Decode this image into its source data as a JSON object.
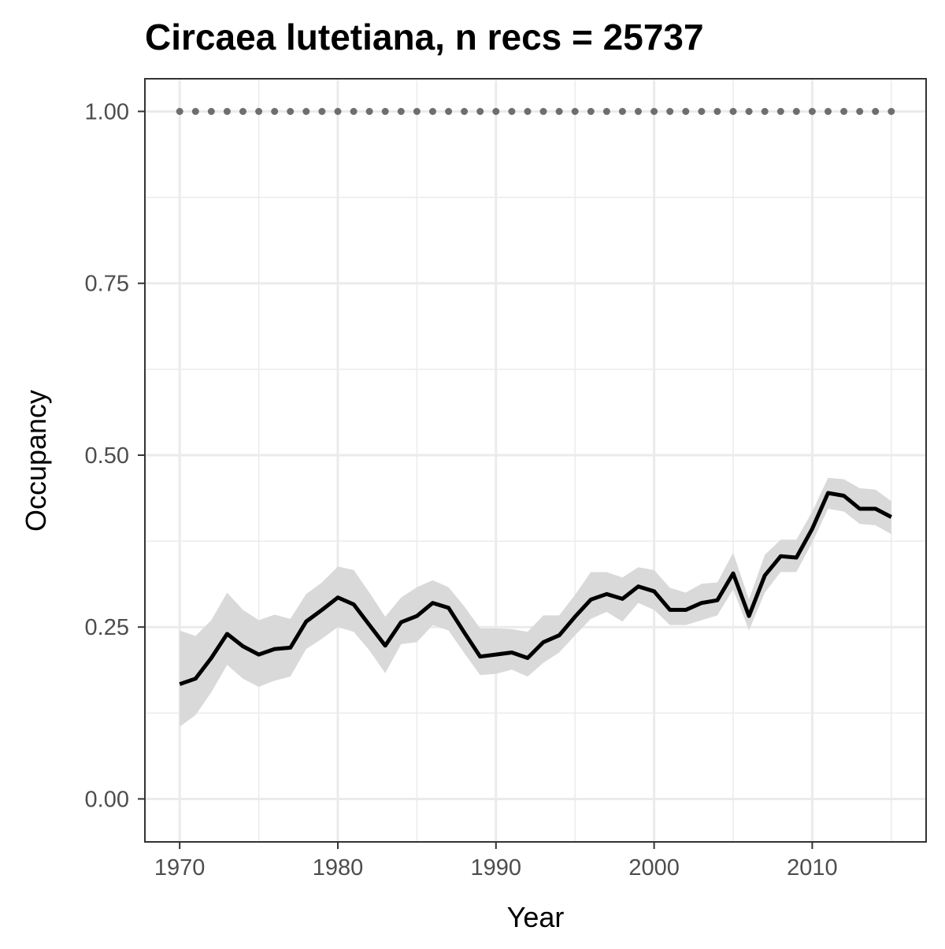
{
  "chart_data": {
    "type": "line",
    "title": "Circaea lutetiana, n recs = 25737",
    "xlabel": "Year",
    "ylabel": "Occupancy",
    "xlim": [
      1967.8,
      2017.2
    ],
    "ylim": [
      -0.0625,
      1.0475
    ],
    "x_ticks": [
      1970,
      1980,
      1990,
      2000,
      2010
    ],
    "x_tick_labels": [
      "1970",
      "1980",
      "1990",
      "2000",
      "2010"
    ],
    "y_ticks": [
      0,
      0.25,
      0.5,
      0.75,
      1.0
    ],
    "y_tick_labels": [
      "0.00",
      "0.25",
      "0.50",
      "0.75",
      "1.00"
    ],
    "grid": true,
    "colors": {
      "line": "#000000",
      "ribbon": "#d9d9d9",
      "reference": "#6e6e6e",
      "grid": "#ebebeb",
      "panel_border": "#333333"
    },
    "series": [
      {
        "type": "line",
        "x": [
          1970,
          1971,
          1972,
          1973,
          1974,
          1975,
          1976,
          1977,
          1978,
          1979,
          1980,
          1981,
          1982,
          1983,
          1984,
          1985,
          1986,
          1987,
          1988,
          1989,
          1990,
          1991,
          1992,
          1993,
          1994,
          1995,
          1996,
          1997,
          1998,
          1999,
          2000,
          2001,
          2002,
          2003,
          2004,
          2005,
          2006,
          2007,
          2008,
          2009,
          2010,
          2011,
          2012,
          2013,
          2014,
          2015
        ],
        "y": [
          0.167,
          0.175,
          0.205,
          0.24,
          0.222,
          0.21,
          0.218,
          0.22,
          0.258,
          0.275,
          0.293,
          0.283,
          0.253,
          0.223,
          0.257,
          0.266,
          0.285,
          0.278,
          0.242,
          0.207,
          0.21,
          0.213,
          0.205,
          0.228,
          0.238,
          0.265,
          0.29,
          0.298,
          0.291,
          0.309,
          0.302,
          0.275,
          0.275,
          0.285,
          0.289,
          0.328,
          0.266,
          0.325,
          0.353,
          0.351,
          0.393,
          0.445,
          0.441,
          0.422,
          0.422,
          0.41
        ],
        "lower": [
          0.105,
          0.122,
          0.155,
          0.195,
          0.175,
          0.163,
          0.172,
          0.178,
          0.218,
          0.233,
          0.25,
          0.243,
          0.216,
          0.183,
          0.225,
          0.228,
          0.253,
          0.245,
          0.212,
          0.18,
          0.182,
          0.188,
          0.178,
          0.198,
          0.213,
          0.238,
          0.262,
          0.272,
          0.258,
          0.285,
          0.275,
          0.253,
          0.253,
          0.26,
          0.267,
          0.305,
          0.245,
          0.3,
          0.33,
          0.33,
          0.373,
          0.422,
          0.418,
          0.4,
          0.398,
          0.385
        ],
        "upper": [
          0.245,
          0.237,
          0.26,
          0.3,
          0.275,
          0.26,
          0.268,
          0.262,
          0.298,
          0.315,
          0.338,
          0.333,
          0.3,
          0.265,
          0.293,
          0.308,
          0.318,
          0.308,
          0.28,
          0.248,
          0.248,
          0.247,
          0.243,
          0.267,
          0.267,
          0.297,
          0.33,
          0.33,
          0.322,
          0.337,
          0.333,
          0.307,
          0.3,
          0.313,
          0.315,
          0.358,
          0.29,
          0.355,
          0.377,
          0.377,
          0.418,
          0.467,
          0.465,
          0.452,
          0.45,
          0.433
        ]
      },
      {
        "type": "points",
        "x": [
          1970,
          1971,
          1972,
          1973,
          1974,
          1975,
          1976,
          1977,
          1978,
          1979,
          1980,
          1981,
          1982,
          1983,
          1984,
          1985,
          1986,
          1987,
          1988,
          1989,
          1990,
          1991,
          1992,
          1993,
          1994,
          1995,
          1996,
          1997,
          1998,
          1999,
          2000,
          2001,
          2002,
          2003,
          2004,
          2005,
          2006,
          2007,
          2008,
          2009,
          2010,
          2011,
          2012,
          2013,
          2014,
          2015
        ],
        "y": [
          1,
          1,
          1,
          1,
          1,
          1,
          1,
          1,
          1,
          1,
          1,
          1,
          1,
          1,
          1,
          1,
          1,
          1,
          1,
          1,
          1,
          1,
          1,
          1,
          1,
          1,
          1,
          1,
          1,
          1,
          1,
          1,
          1,
          1,
          1,
          1,
          1,
          1,
          1,
          1,
          1,
          1,
          1,
          1,
          1,
          1
        ]
      }
    ]
  }
}
